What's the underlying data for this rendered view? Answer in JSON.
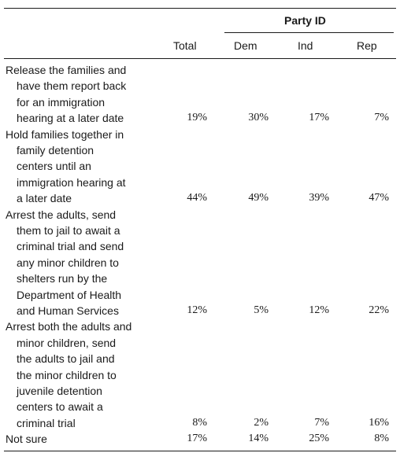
{
  "header": {
    "group_label": "Party ID",
    "columns": [
      "Total",
      "Dem",
      "Ind",
      "Rep"
    ]
  },
  "rows": [
    {
      "label_lines": [
        "Release the families and",
        "have them report back",
        "for an immigration",
        "hearing at a later date"
      ],
      "values": [
        "19%",
        "30%",
        "17%",
        "7%"
      ]
    },
    {
      "label_lines": [
        "Hold families together in",
        "family detention",
        "centers until an",
        "immigration hearing at",
        "a later date"
      ],
      "values": [
        "44%",
        "49%",
        "39%",
        "47%"
      ]
    },
    {
      "label_lines": [
        "Arrest the adults, send",
        "them to jail to await a",
        "criminal trial and send",
        "any minor children to",
        "shelters run by the",
        "Department of Health",
        "and Human Services"
      ],
      "values": [
        "12%",
        "5%",
        "12%",
        "22%"
      ]
    },
    {
      "label_lines": [
        "Arrest both the adults and",
        "minor children, send",
        "the adults to jail and",
        "the minor children to",
        "juvenile detention",
        "centers to await a",
        "criminal trial"
      ],
      "values": [
        "8%",
        "2%",
        "7%",
        "16%"
      ]
    },
    {
      "label_lines": [
        "Not sure"
      ],
      "values": [
        "17%",
        "14%",
        "25%",
        "8%"
      ]
    }
  ]
}
